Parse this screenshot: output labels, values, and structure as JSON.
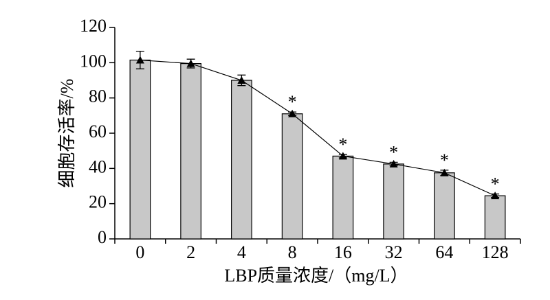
{
  "chart_data": {
    "type": "bar",
    "xlabel": "LBP质量浓度/（mg/L）",
    "ylabel": "细胞存活率/%",
    "categories": [
      "0",
      "2",
      "4",
      "8",
      "16",
      "32",
      "64",
      "128"
    ],
    "values": [
      101.5,
      99.5,
      90,
      71,
      47,
      42.5,
      37.5,
      24.5
    ],
    "errors": [
      5,
      2.5,
      3,
      1,
      1,
      1,
      1.5,
      1
    ],
    "markers": [
      null,
      null,
      null,
      "*",
      "*",
      "*",
      "*",
      "*"
    ],
    "color": "#c8c8c8",
    "line_color": "#000000",
    "ylim": [
      0,
      120
    ],
    "yticks": [
      0,
      20,
      40,
      60,
      80,
      100,
      120
    ]
  }
}
